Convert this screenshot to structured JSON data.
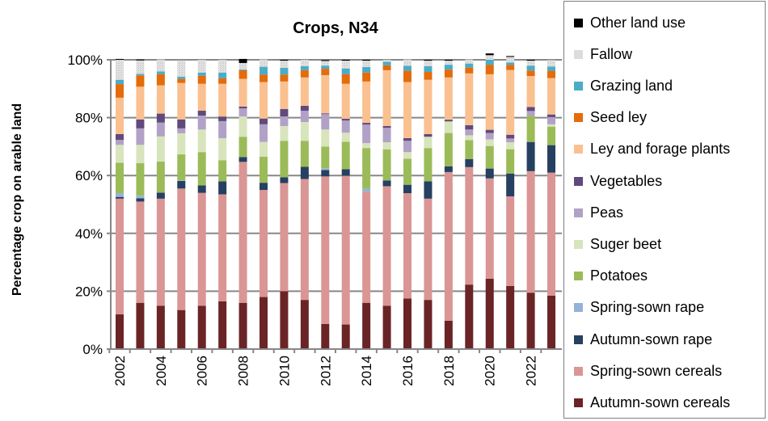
{
  "chart_data": {
    "type": "bar",
    "stacked": true,
    "title": "Crops, N34",
    "xlabel": "",
    "ylabel": "Percentage crop on arable land",
    "ylim": [
      0,
      100
    ],
    "yticks": [
      "0%",
      "20%",
      "40%",
      "60%",
      "80%",
      "100%"
    ],
    "xtick_labels": [
      "2002",
      "2004",
      "2006",
      "2008",
      "2010",
      "2012",
      "2014",
      "2016",
      "2018",
      "2020",
      "2022"
    ],
    "grid": true,
    "legend_position": "right",
    "categories": [
      "2002",
      "2003",
      "2004",
      "2005",
      "2006",
      "2007",
      "2008",
      "2009",
      "2010",
      "2011",
      "2012",
      "2013",
      "2014",
      "2015",
      "2016",
      "2017",
      "2018",
      "2019",
      "2020",
      "2021",
      "2022",
      "2023"
    ],
    "series": [
      {
        "name": "Autumn-sown cereals",
        "color": "#6b2426",
        "values": [
          12,
          16,
          15,
          13.5,
          15,
          16.5,
          16,
          18,
          20,
          17,
          8.7,
          8.5,
          16,
          15,
          17.5,
          17,
          9.8,
          22.3,
          24.3,
          21.8,
          19.5,
          18.5
        ]
      },
      {
        "name": "Spring-sown cereals",
        "color": "#da9694",
        "values": [
          40,
          35,
          37,
          42,
          39,
          37,
          48.7,
          37,
          37.4,
          41.8,
          51,
          51.4,
          38.3,
          41.3,
          36.4,
          35,
          51.4,
          40.6,
          34.7,
          31,
          42,
          42.5
        ]
      },
      {
        "name": "Autumn-sown rape",
        "color": "#254061",
        "values": [
          0.6,
          1.1,
          2.1,
          2.6,
          2.6,
          4.5,
          1.7,
          2.5,
          2,
          4.2,
          2.2,
          2.3,
          0,
          2,
          2.9,
          6,
          2,
          2.8,
          3.4,
          7.9,
          10.1,
          9.5
        ]
      },
      {
        "name": "Spring-sown rape",
        "color": "#95b3d7",
        "values": [
          1.3,
          0.9,
          0,
          0.2,
          0,
          0,
          0,
          0,
          0,
          0,
          0.6,
          0,
          1.1,
          0,
          0,
          0,
          0,
          0,
          0,
          0,
          0,
          0
        ]
      },
      {
        "name": "Potatoes",
        "color": "#9bbb59",
        "values": [
          10.5,
          11.3,
          10.7,
          9,
          11.5,
          7.3,
          7,
          9,
          12.6,
          9,
          7.5,
          9.5,
          14.1,
          10.7,
          9,
          11.5,
          11.5,
          6.5,
          7.8,
          8.4,
          9.1,
          6.4
        ]
      },
      {
        "name": "Suger beet",
        "color": "#d8e4bc",
        "values": [
          6.2,
          6.3,
          8.7,
          7.3,
          7.8,
          7.6,
          7,
          5.1,
          5.1,
          6.5,
          5.9,
          3.1,
          1.7,
          2.5,
          2.3,
          3.9,
          4,
          1.7,
          2.3,
          2.4,
          0,
          0.8
        ]
      },
      {
        "name": "Peas",
        "color": "#b2a1c7",
        "values": [
          1.7,
          5.7,
          4.8,
          1.7,
          4.8,
          5.9,
          2.8,
          6.1,
          3.3,
          3.9,
          5.3,
          4.2,
          6.4,
          5,
          3.9,
          0,
          0,
          2,
          2.2,
          1.3,
          1.6,
          2.5
        ]
      },
      {
        "name": "Vegetables",
        "color": "#604a7b",
        "values": [
          2,
          3.1,
          3.1,
          3.1,
          1.7,
          1.6,
          0.6,
          2,
          2.6,
          1.7,
          0.3,
          0.6,
          0.6,
          0.6,
          0.9,
          0.9,
          0.6,
          1.5,
          1.1,
          1.3,
          1.4,
          0.9
        ]
      },
      {
        "name": "Ley and forage plants",
        "color": "#fac090",
        "values": [
          12.6,
          11.3,
          9.8,
          12.6,
          9.3,
          11.3,
          9.6,
          12.6,
          9.5,
          9.8,
          13.2,
          12.1,
          14.3,
          19.3,
          19.4,
          18.8,
          14.6,
          17.9,
          19.2,
          22.4,
          10.7,
          12.6
        ]
      },
      {
        "name": "Seed ley",
        "color": "#e46c0a",
        "values": [
          4.7,
          3.9,
          3.8,
          1.4,
          2.8,
          1.9,
          3,
          2.6,
          2.4,
          2.5,
          2.2,
          3.3,
          3.1,
          1.7,
          3.9,
          2.7,
          2.7,
          2,
          3.3,
          1.7,
          1.9,
          2.5
        ]
      },
      {
        "name": "Grazing land",
        "color": "#4bacc6",
        "values": [
          1.5,
          0.5,
          1,
          0.8,
          1.1,
          2,
          0.3,
          2.7,
          2.3,
          1.4,
          1.1,
          2,
          1.9,
          1.2,
          1.7,
          2,
          1.7,
          1.4,
          1.7,
          0.9,
          1.7,
          1.5
        ]
      },
      {
        "name": "Fallow",
        "color": "#d9d9d9",
        "values": [
          6.9,
          4.7,
          4.1,
          5.6,
          4.4,
          4.4,
          2.2,
          2.5,
          2.5,
          2.2,
          1.6,
          2.7,
          2.2,
          0.7,
          2.2,
          1.9,
          1.4,
          1.4,
          1.6,
          1.9,
          1.7,
          2.2
        ]
      },
      {
        "name": "Other land use",
        "color": "#000000",
        "values": [
          0.3,
          0.3,
          0,
          0,
          0,
          0,
          1.4,
          0,
          0.3,
          0,
          0.3,
          0.3,
          0.3,
          0,
          0,
          0.3,
          0.3,
          0,
          0.6,
          0.3,
          0.3,
          0
        ]
      }
    ]
  }
}
